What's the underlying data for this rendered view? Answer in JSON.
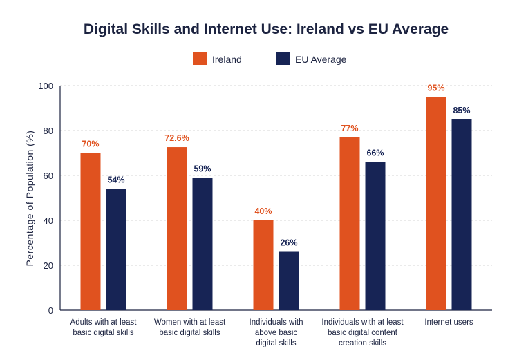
{
  "chart_data": {
    "type": "bar",
    "title": "Digital Skills and Internet Use: Ireland vs EU Average",
    "ylabel": "Percentage of Population (%)",
    "xlabel": "",
    "ylim": [
      0,
      100
    ],
    "yticks": [
      0,
      20,
      40,
      60,
      80,
      100
    ],
    "grid": true,
    "legend_position": "top-center",
    "categories": [
      [
        "Adults with at least",
        "basic digital skills"
      ],
      [
        "Women with at least",
        "basic digital skills"
      ],
      [
        "Individuals with",
        "above basic",
        "digital skills"
      ],
      [
        "Individuals with at least",
        "basic digital content",
        "creation skills"
      ],
      [
        "Internet users"
      ]
    ],
    "series": [
      {
        "name": "Ireland",
        "color": "#e0521f",
        "values": [
          70,
          72.6,
          40,
          77,
          95
        ],
        "labels": [
          "70%",
          "72.6%",
          "40%",
          "77%",
          "95%"
        ]
      },
      {
        "name": "EU Average",
        "color": "#172455",
        "values": [
          54,
          59,
          26,
          66,
          85
        ],
        "labels": [
          "54%",
          "59%",
          "26%",
          "66%",
          "85%"
        ]
      }
    ]
  }
}
